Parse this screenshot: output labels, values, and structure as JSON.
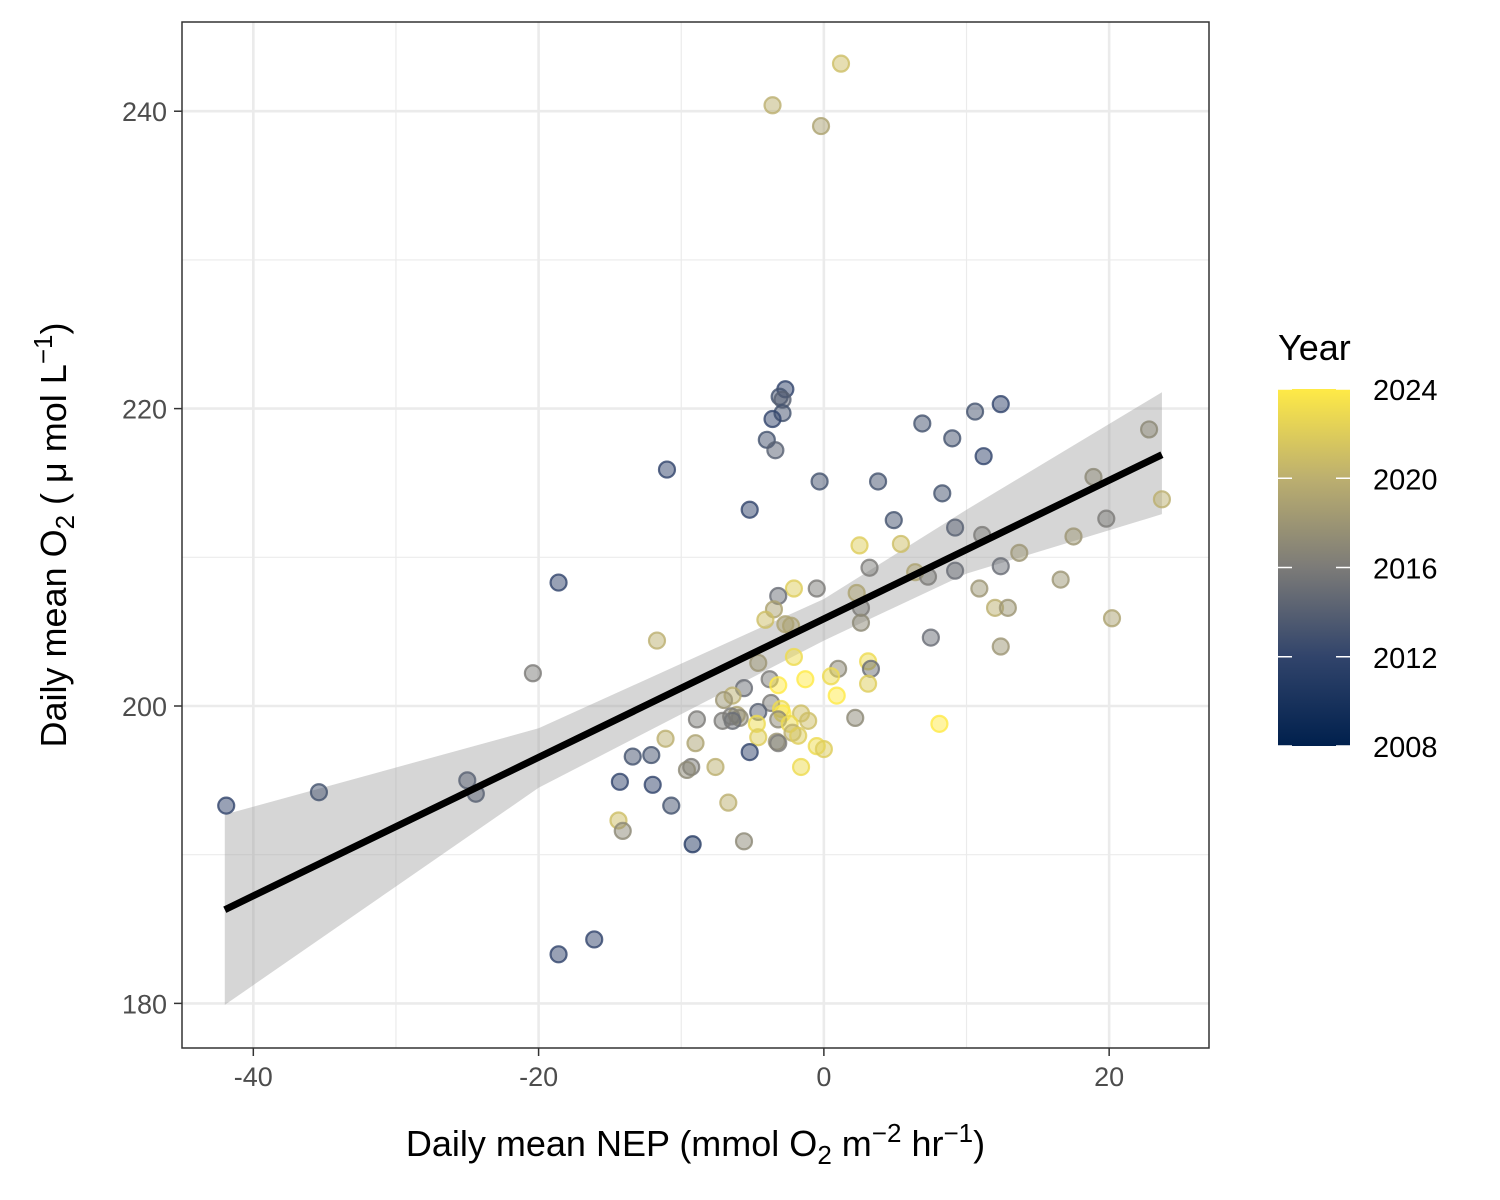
{
  "chart_data": {
    "type": "scatter",
    "xlabel": {
      "pre": "Daily mean NEP (mmol O",
      "sub": "2",
      "mid": " m",
      "sup1": "−2",
      "mid2": " hr",
      "sup2": "−1",
      "post": ")"
    },
    "ylabel": {
      "pre": "Daily mean O",
      "sub": "2",
      "mid": " ( μ mol L",
      "sup": "−1",
      "post": ")"
    },
    "xlim": [
      -45,
      27
    ],
    "ylim": [
      177,
      246
    ],
    "x_ticks": [
      -40,
      -20,
      0,
      20
    ],
    "x_tick_labels": [
      "-40",
      "-20",
      "0",
      "20"
    ],
    "y_ticks": [
      180,
      200,
      220,
      240
    ],
    "y_tick_labels": [
      "180",
      "200",
      "220",
      "240"
    ],
    "grid": true,
    "legend": {
      "title": "Year",
      "position": "right",
      "breaks": [
        2008,
        2012,
        2016,
        2020,
        2024
      ],
      "labels": [
        "2008",
        "2012",
        "2016",
        "2020",
        "2024"
      ],
      "range": [
        2008,
        2024
      ]
    },
    "colors": {
      "low": "#00204d",
      "mid": "#7c7b78",
      "high": "#ffea46",
      "fit_line": "#000000",
      "confidence_band": "#999999",
      "panel_border": "#333333",
      "grid_major": "#ebebeb"
    },
    "point_alpha": 0.5,
    "fit": {
      "x_range": [
        -42,
        23.7
      ],
      "y_at_start": 186.3,
      "y_at_end": 216.9,
      "ci_lower": [
        [
          -42,
          179.9
        ],
        [
          -20,
          194.5
        ],
        [
          0,
          204.4
        ],
        [
          10,
          208.9
        ],
        [
          23.7,
          212.9
        ]
      ],
      "ci_upper": [
        [
          -42,
          192.7
        ],
        [
          -20,
          198.5
        ],
        [
          0,
          207.2
        ],
        [
          10,
          213.2
        ],
        [
          23.7,
          221.1
        ]
      ]
    },
    "points": [
      {
        "x": 1.2,
        "y": 243.2,
        "year": 2021
      },
      {
        "x": -3.6,
        "y": 240.4,
        "year": 2020
      },
      {
        "x": -0.2,
        "y": 239.0,
        "year": 2019
      },
      {
        "x": -2.7,
        "y": 221.3,
        "year": 2012
      },
      {
        "x": -3.1,
        "y": 220.8,
        "year": 2013
      },
      {
        "x": -2.9,
        "y": 220.6,
        "year": 2014
      },
      {
        "x": -2.9,
        "y": 219.7,
        "year": 2013
      },
      {
        "x": -3.6,
        "y": 219.3,
        "year": 2012
      },
      {
        "x": -4.0,
        "y": 217.9,
        "year": 2013
      },
      {
        "x": -3.4,
        "y": 217.2,
        "year": 2014
      },
      {
        "x": 12.4,
        "y": 220.3,
        "year": 2012
      },
      {
        "x": 10.6,
        "y": 219.8,
        "year": 2013
      },
      {
        "x": 6.9,
        "y": 219.0,
        "year": 2013
      },
      {
        "x": 9.0,
        "y": 218.0,
        "year": 2013
      },
      {
        "x": 11.2,
        "y": 216.8,
        "year": 2012
      },
      {
        "x": -11.0,
        "y": 215.9,
        "year": 2012
      },
      {
        "x": -0.3,
        "y": 215.1,
        "year": 2013
      },
      {
        "x": 3.8,
        "y": 215.1,
        "year": 2013
      },
      {
        "x": 8.3,
        "y": 214.3,
        "year": 2013
      },
      {
        "x": -5.2,
        "y": 213.2,
        "year": 2012
      },
      {
        "x": 4.9,
        "y": 212.5,
        "year": 2013
      },
      {
        "x": 22.8,
        "y": 218.6,
        "year": 2017
      },
      {
        "x": 18.9,
        "y": 215.4,
        "year": 2017
      },
      {
        "x": 23.7,
        "y": 213.9,
        "year": 2020
      },
      {
        "x": 19.8,
        "y": 212.6,
        "year": 2016
      },
      {
        "x": 9.2,
        "y": 212.0,
        "year": 2014
      },
      {
        "x": 11.1,
        "y": 211.5,
        "year": 2016
      },
      {
        "x": 17.5,
        "y": 211.4,
        "year": 2018
      },
      {
        "x": 2.5,
        "y": 210.8,
        "year": 2022
      },
      {
        "x": 5.4,
        "y": 210.9,
        "year": 2021
      },
      {
        "x": 13.7,
        "y": 210.3,
        "year": 2018
      },
      {
        "x": 3.2,
        "y": 209.3,
        "year": 2016
      },
      {
        "x": 6.4,
        "y": 209.0,
        "year": 2019
      },
      {
        "x": 7.3,
        "y": 208.7,
        "year": 2016
      },
      {
        "x": 9.2,
        "y": 209.1,
        "year": 2015
      },
      {
        "x": 12.4,
        "y": 209.4,
        "year": 2015
      },
      {
        "x": 16.6,
        "y": 208.5,
        "year": 2018
      },
      {
        "x": -18.6,
        "y": 208.3,
        "year": 2012
      },
      {
        "x": 10.9,
        "y": 207.9,
        "year": 2018
      },
      {
        "x": -2.1,
        "y": 207.9,
        "year": 2022
      },
      {
        "x": -0.5,
        "y": 207.9,
        "year": 2016
      },
      {
        "x": -3.2,
        "y": 207.4,
        "year": 2015
      },
      {
        "x": 2.3,
        "y": 207.6,
        "year": 2019
      },
      {
        "x": 2.6,
        "y": 206.6,
        "year": 2016
      },
      {
        "x": 12.0,
        "y": 206.6,
        "year": 2020
      },
      {
        "x": 12.9,
        "y": 206.6,
        "year": 2018
      },
      {
        "x": -3.5,
        "y": 206.5,
        "year": 2019
      },
      {
        "x": -4.1,
        "y": 205.8,
        "year": 2021
      },
      {
        "x": -2.7,
        "y": 205.5,
        "year": 2019
      },
      {
        "x": -2.3,
        "y": 205.4,
        "year": 2019
      },
      {
        "x": 2.6,
        "y": 205.6,
        "year": 2017
      },
      {
        "x": 20.2,
        "y": 205.9,
        "year": 2019
      },
      {
        "x": 7.5,
        "y": 204.6,
        "year": 2015
      },
      {
        "x": -11.7,
        "y": 204.4,
        "year": 2020
      },
      {
        "x": 12.4,
        "y": 204.0,
        "year": 2018
      },
      {
        "x": -2.1,
        "y": 203.3,
        "year": 2023
      },
      {
        "x": 3.1,
        "y": 203.0,
        "year": 2023
      },
      {
        "x": -4.6,
        "y": 202.9,
        "year": 2018
      },
      {
        "x": 1.0,
        "y": 202.5,
        "year": 2017
      },
      {
        "x": 3.3,
        "y": 202.5,
        "year": 2015
      },
      {
        "x": -20.4,
        "y": 202.2,
        "year": 2016
      },
      {
        "x": 0.5,
        "y": 202.0,
        "year": 2023
      },
      {
        "x": -1.3,
        "y": 201.8,
        "year": 2024
      },
      {
        "x": -3.8,
        "y": 201.8,
        "year": 2016
      },
      {
        "x": -3.2,
        "y": 201.4,
        "year": 2024
      },
      {
        "x": 3.1,
        "y": 201.5,
        "year": 2022
      },
      {
        "x": -5.6,
        "y": 201.2,
        "year": 2015
      },
      {
        "x": -6.4,
        "y": 200.7,
        "year": 2020
      },
      {
        "x": 0.9,
        "y": 200.7,
        "year": 2024
      },
      {
        "x": -7.0,
        "y": 200.4,
        "year": 2018
      },
      {
        "x": -3.7,
        "y": 200.2,
        "year": 2016
      },
      {
        "x": -3.0,
        "y": 199.8,
        "year": 2023
      },
      {
        "x": -4.6,
        "y": 199.6,
        "year": 2014
      },
      {
        "x": -2.9,
        "y": 199.5,
        "year": 2024
      },
      {
        "x": -1.6,
        "y": 199.5,
        "year": 2021
      },
      {
        "x": -6.1,
        "y": 199.4,
        "year": 2019
      },
      {
        "x": -6.5,
        "y": 199.3,
        "year": 2016
      },
      {
        "x": -5.9,
        "y": 199.2,
        "year": 2017
      },
      {
        "x": -3.2,
        "y": 199.1,
        "year": 2017
      },
      {
        "x": -8.9,
        "y": 199.1,
        "year": 2016
      },
      {
        "x": -6.4,
        "y": 199.0,
        "year": 2015
      },
      {
        "x": -7.1,
        "y": 199.0,
        "year": 2016
      },
      {
        "x": -1.1,
        "y": 199.0,
        "year": 2021
      },
      {
        "x": 2.2,
        "y": 199.2,
        "year": 2017
      },
      {
        "x": 8.1,
        "y": 198.8,
        "year": 2024
      },
      {
        "x": -4.7,
        "y": 198.8,
        "year": 2023
      },
      {
        "x": -2.4,
        "y": 198.8,
        "year": 2023
      },
      {
        "x": -2.2,
        "y": 198.2,
        "year": 2020
      },
      {
        "x": -1.8,
        "y": 198.0,
        "year": 2022
      },
      {
        "x": -4.6,
        "y": 197.9,
        "year": 2022
      },
      {
        "x": -11.1,
        "y": 197.8,
        "year": 2020
      },
      {
        "x": -3.3,
        "y": 197.6,
        "year": 2018
      },
      {
        "x": -3.2,
        "y": 197.5,
        "year": 2016
      },
      {
        "x": -9.0,
        "y": 197.5,
        "year": 2019
      },
      {
        "x": -0.5,
        "y": 197.3,
        "year": 2023
      },
      {
        "x": 0.0,
        "y": 197.1,
        "year": 2022
      },
      {
        "x": -5.2,
        "y": 196.9,
        "year": 2012
      },
      {
        "x": -13.4,
        "y": 196.6,
        "year": 2013
      },
      {
        "x": -12.1,
        "y": 196.7,
        "year": 2013
      },
      {
        "x": -7.6,
        "y": 195.9,
        "year": 2020
      },
      {
        "x": -9.3,
        "y": 195.9,
        "year": 2016
      },
      {
        "x": -9.6,
        "y": 195.7,
        "year": 2017
      },
      {
        "x": -1.6,
        "y": 195.9,
        "year": 2023
      },
      {
        "x": -25.0,
        "y": 195.0,
        "year": 2014
      },
      {
        "x": -14.3,
        "y": 194.9,
        "year": 2012
      },
      {
        "x": -12.0,
        "y": 194.7,
        "year": 2012
      },
      {
        "x": -35.4,
        "y": 194.2,
        "year": 2013
      },
      {
        "x": -24.4,
        "y": 194.1,
        "year": 2014
      },
      {
        "x": -6.7,
        "y": 193.5,
        "year": 2020
      },
      {
        "x": -10.7,
        "y": 193.3,
        "year": 2013
      },
      {
        "x": -41.9,
        "y": 193.3,
        "year": 2012
      },
      {
        "x": -14.4,
        "y": 192.3,
        "year": 2021
      },
      {
        "x": -14.1,
        "y": 191.6,
        "year": 2017
      },
      {
        "x": -5.6,
        "y": 190.9,
        "year": 2017
      },
      {
        "x": -9.2,
        "y": 190.7,
        "year": 2011
      },
      {
        "x": -16.1,
        "y": 184.3,
        "year": 2012
      },
      {
        "x": -18.6,
        "y": 183.3,
        "year": 2012
      }
    ]
  }
}
